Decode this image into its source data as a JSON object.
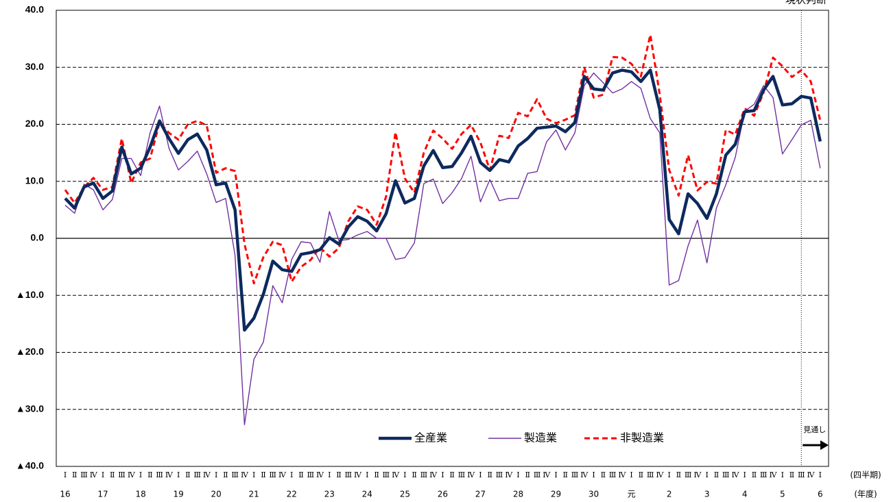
{
  "chart_data": {
    "type": "line",
    "top_label": "現状判断",
    "x_label": "(四半期)",
    "x_label_2": "(年度)",
    "forecast_label": "見通し",
    "categories": [
      "Ⅰ",
      "Ⅱ",
      "Ⅲ",
      "Ⅳ",
      "Ⅰ",
      "Ⅱ",
      "Ⅲ",
      "Ⅳ",
      "Ⅰ",
      "Ⅱ",
      "Ⅲ",
      "Ⅳ",
      "Ⅰ",
      "Ⅱ",
      "Ⅲ",
      "Ⅳ",
      "Ⅰ",
      "Ⅱ",
      "Ⅲ",
      "Ⅳ",
      "Ⅰ",
      "Ⅱ",
      "Ⅲ",
      "Ⅳ",
      "Ⅰ",
      "Ⅱ",
      "Ⅲ",
      "Ⅳ",
      "Ⅰ",
      "Ⅱ",
      "Ⅲ",
      "Ⅳ",
      "Ⅰ",
      "Ⅱ",
      "Ⅲ",
      "Ⅳ",
      "Ⅰ",
      "Ⅱ",
      "Ⅲ",
      "Ⅳ",
      "Ⅰ",
      "Ⅱ",
      "Ⅲ",
      "Ⅳ",
      "Ⅰ",
      "Ⅱ",
      "Ⅲ",
      "Ⅳ",
      "Ⅰ",
      "Ⅱ",
      "Ⅲ",
      "Ⅳ",
      "Ⅰ",
      "Ⅱ",
      "Ⅲ",
      "Ⅳ",
      "Ⅰ",
      "Ⅱ",
      "Ⅲ",
      "Ⅳ",
      "Ⅰ",
      "Ⅱ",
      "Ⅲ",
      "Ⅳ",
      "Ⅰ",
      "Ⅱ",
      "Ⅲ",
      "Ⅳ",
      "Ⅰ",
      "Ⅱ",
      "Ⅲ",
      "Ⅳ",
      "Ⅰ",
      "Ⅱ",
      "Ⅲ",
      "Ⅳ",
      "Ⅰ",
      "Ⅱ",
      "Ⅲ",
      "Ⅳ",
      "Ⅰ"
    ],
    "year_labels": [
      "16",
      null,
      null,
      null,
      "17",
      null,
      null,
      null,
      "18",
      null,
      null,
      null,
      "19",
      null,
      null,
      null,
      "20",
      null,
      null,
      null,
      "21",
      null,
      null,
      null,
      "22",
      null,
      null,
      null,
      "23",
      null,
      null,
      null,
      "24",
      null,
      null,
      null,
      "25",
      null,
      null,
      null,
      "26",
      null,
      null,
      null,
      "27",
      null,
      null,
      null,
      "28",
      null,
      null,
      null,
      "29",
      null,
      null,
      null,
      "30",
      null,
      null,
      null,
      "元",
      null,
      null,
      null,
      "2",
      null,
      null,
      null,
      "3",
      null,
      null,
      null,
      "4",
      null,
      null,
      null,
      "5",
      null,
      null,
      null,
      "6"
    ],
    "series": [
      {
        "name": "全産業",
        "color": "#0d2a5e",
        "values": [
          7.0,
          5.3,
          9.0,
          9.7,
          7.0,
          8.3,
          16.0,
          11.3,
          12.3,
          16.0,
          20.6,
          17.5,
          14.9,
          17.3,
          18.3,
          15.5,
          9.4,
          9.7,
          5.0,
          -16.1,
          -14.0,
          -9.8,
          -4.0,
          -5.5,
          -5.8,
          -2.8,
          -2.5,
          -2.0,
          0.1,
          -1.0,
          2.0,
          3.8,
          3.0,
          1.3,
          4.3,
          10.1,
          6.2,
          7.0,
          12.7,
          15.4,
          12.4,
          12.6,
          15.0,
          17.9,
          13.3,
          11.9,
          13.8,
          13.4,
          16.2,
          17.5,
          19.3,
          19.5,
          19.7,
          18.7,
          20.3,
          28.4,
          26.2,
          26.0,
          29.0,
          29.5,
          29.2,
          27.5,
          29.5,
          22.6,
          3.3,
          0.8,
          7.8,
          6.1,
          3.5,
          7.8,
          14.6,
          16.5,
          22.2,
          22.4,
          26.0,
          28.4,
          23.4,
          23.6,
          24.9,
          24.6,
          17.0
        ]
      },
      {
        "name": "製造業",
        "color": "#7030a0",
        "values": [
          5.8,
          4.4,
          9.5,
          8.5,
          5.0,
          6.8,
          14.0,
          14.0,
          11.0,
          18.5,
          23.2,
          15.8,
          12.0,
          13.5,
          15.3,
          11.3,
          6.3,
          7.0,
          -3.0,
          -32.7,
          -21.2,
          -18.2,
          -8.3,
          -11.3,
          -3.7,
          -0.6,
          -0.8,
          -4.2,
          4.7,
          -0.4,
          -0.2,
          0.6,
          1.2,
          0.0,
          0.0,
          -3.7,
          -3.4,
          -0.8,
          9.6,
          10.4,
          6.1,
          8.0,
          10.5,
          14.4,
          6.4,
          10.3,
          6.6,
          7.0,
          7.0,
          11.4,
          11.7,
          16.9,
          19.0,
          15.5,
          18.5,
          26.8,
          29.0,
          27.3,
          25.5,
          26.2,
          27.5,
          26.3,
          21.0,
          18.5,
          -8.2,
          -7.4,
          -1.3,
          3.2,
          -4.3,
          5.3,
          9.4,
          14.2,
          22.3,
          23.5,
          26.8,
          24.7,
          14.8,
          17.3,
          19.9,
          20.7,
          12.3
        ]
      },
      {
        "name": "非製造業",
        "color": "#ff0000",
        "dashed": true,
        "values": [
          8.5,
          6.2,
          9.0,
          10.6,
          8.5,
          9.0,
          17.5,
          9.7,
          13.3,
          14.0,
          20.3,
          18.5,
          17.3,
          20.0,
          20.6,
          19.8,
          11.5,
          12.3,
          11.8,
          -1.0,
          -7.9,
          -3.3,
          -0.6,
          -1.2,
          -7.6,
          -5.0,
          -3.8,
          -1.6,
          -3.2,
          -1.7,
          3.0,
          5.6,
          5.0,
          2.4,
          7.3,
          18.6,
          10.5,
          8.0,
          15.0,
          18.9,
          17.5,
          15.7,
          18.3,
          19.9,
          16.8,
          12.0,
          18.0,
          17.6,
          22.0,
          21.4,
          24.4,
          21.0,
          20.2,
          20.8,
          21.6,
          30.0,
          24.7,
          25.2,
          31.8,
          31.7,
          30.6,
          28.4,
          35.7,
          25.2,
          12.0,
          7.5,
          14.6,
          8.4,
          9.9,
          9.6,
          19.0,
          18.2,
          22.8,
          21.5,
          25.6,
          31.7,
          30.2,
          28.3,
          29.5,
          27.5,
          20.7
        ]
      }
    ],
    "ylim": [
      -40,
      40
    ],
    "yticks": [
      {
        "value": 40,
        "label": "40.0"
      },
      {
        "value": 30,
        "label": "30.0"
      },
      {
        "value": 20,
        "label": "20.0"
      },
      {
        "value": 10,
        "label": "10.0"
      },
      {
        "value": 0,
        "label": "0.0"
      },
      {
        "value": -10,
        "label": "▲10.0"
      },
      {
        "value": -20,
        "label": "▲20.0"
      },
      {
        "value": -30,
        "label": "▲30.0"
      },
      {
        "value": -40,
        "label": "▲40.0"
      }
    ],
    "grid": true,
    "legend": "lower right"
  }
}
